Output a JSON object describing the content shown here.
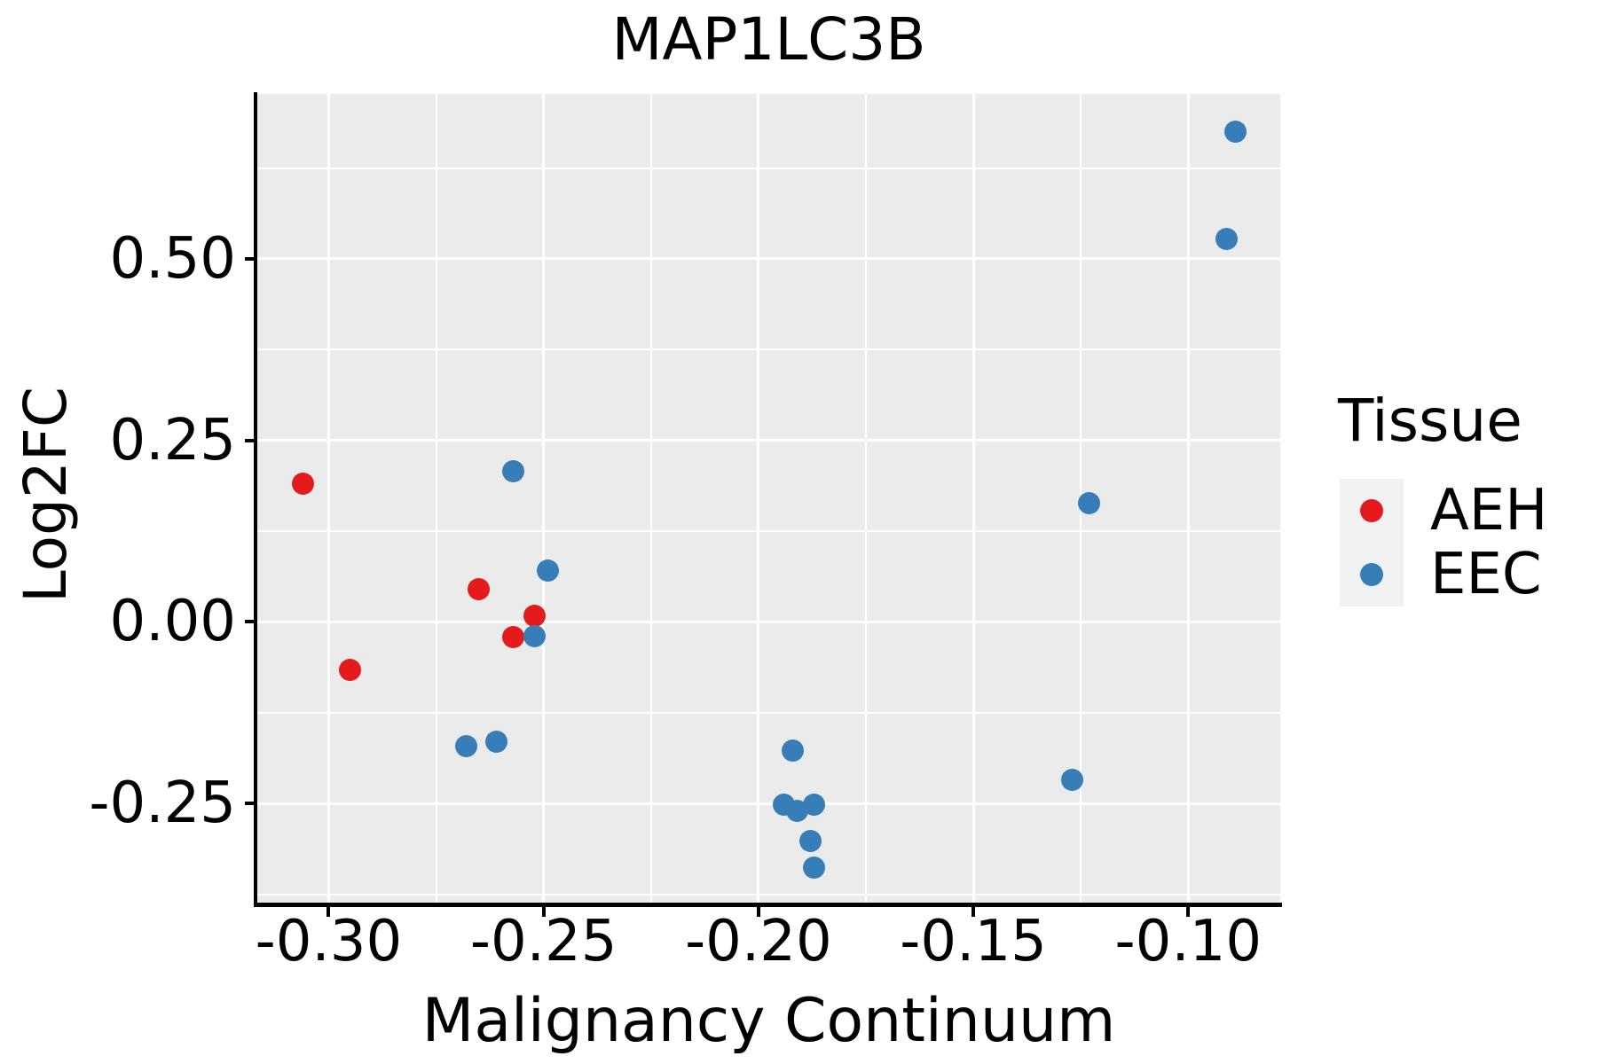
{
  "figure": {
    "title": "MAP1LC3B",
    "x_axis_label": "Malignancy Continuum",
    "y_axis_label": "Log2FC"
  },
  "legend": {
    "title": "Tissue",
    "entries": [
      {
        "label": "AEH",
        "color": "#E41A1C"
      },
      {
        "label": "EEC",
        "color": "#377EB8"
      }
    ]
  },
  "chart_data": {
    "type": "scatter",
    "title": "MAP1LC3B",
    "xlabel": "Malignancy Continuum",
    "ylabel": "Log2FC",
    "xlim": [
      -0.3166,
      -0.0786
    ],
    "ylim": [
      -0.389,
      0.727
    ],
    "x_major_ticks": [
      -0.3,
      -0.25,
      -0.2,
      -0.15,
      -0.1
    ],
    "x_tick_labels": [
      "-0.30",
      "-0.25",
      "-0.20",
      "-0.15",
      "-0.10"
    ],
    "x_minor_ticks": [
      -0.275,
      -0.225,
      -0.175,
      -0.125
    ],
    "y_major_ticks": [
      0.5,
      0.25,
      0.0,
      -0.25
    ],
    "y_tick_labels": [
      "0.50",
      "0.25",
      "0.00",
      "-0.25"
    ],
    "y_minor_ticks": [
      0.625,
      0.375,
      0.125,
      -0.125,
      -0.375
    ],
    "grid": "white major and minor gridlines on gray panel",
    "legend_position": "right",
    "panel_bg": "#EBEBEB",
    "grid_color": "#FFFFFF",
    "marker_diameter_px": 25,
    "series": [
      {
        "name": "AEH",
        "color": "#E41A1C",
        "points": [
          [
            -0.306,
            0.19
          ],
          [
            -0.295,
            -0.066
          ],
          [
            -0.265,
            0.045
          ],
          [
            -0.257,
            -0.021
          ],
          [
            -0.252,
            0.009
          ]
        ]
      },
      {
        "name": "EEC",
        "color": "#377EB8",
        "points": [
          [
            -0.257,
            0.207
          ],
          [
            -0.249,
            0.071
          ],
          [
            -0.252,
            -0.02
          ],
          [
            -0.268,
            -0.171
          ],
          [
            -0.261,
            -0.165
          ],
          [
            -0.192,
            -0.177
          ],
          [
            -0.194,
            -0.252
          ],
          [
            -0.191,
            -0.26
          ],
          [
            -0.187,
            -0.252
          ],
          [
            -0.188,
            -0.302
          ],
          [
            -0.187,
            -0.338
          ],
          [
            -0.127,
            -0.217
          ],
          [
            -0.123,
            0.164
          ],
          [
            -0.091,
            0.527
          ],
          [
            -0.089,
            0.675
          ]
        ]
      }
    ]
  }
}
